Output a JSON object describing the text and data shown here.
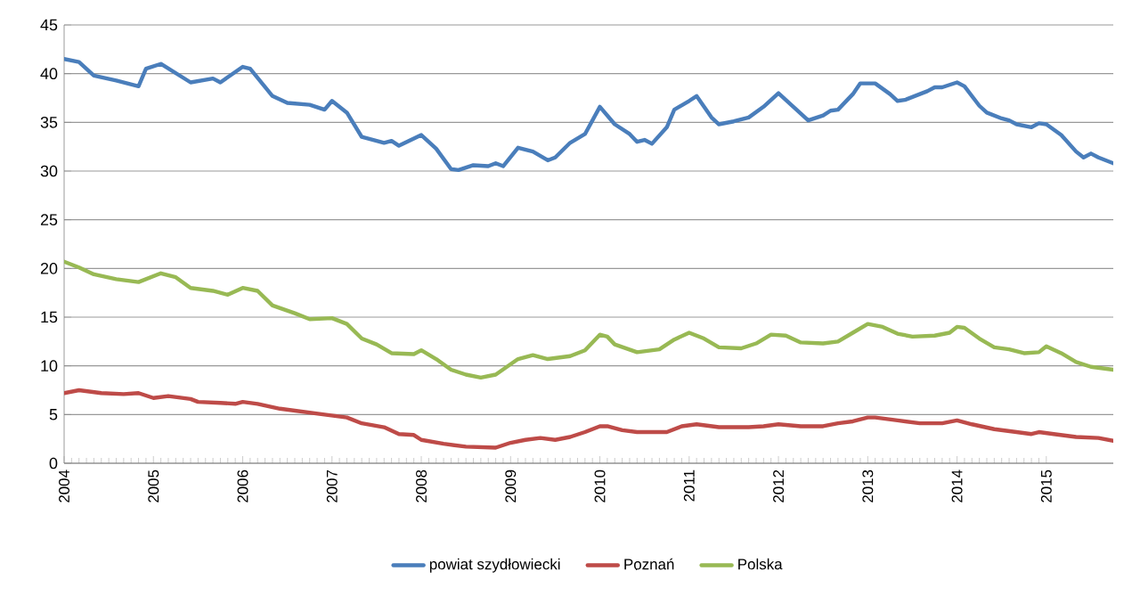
{
  "chart_data": {
    "type": "line",
    "xlim": [
      "2004-01",
      "2015-10"
    ],
    "xticks": [
      "2004",
      "2005",
      "2006",
      "2007",
      "2008",
      "2009",
      "2010",
      "2011",
      "2012",
      "2013",
      "2014",
      "2015"
    ],
    "ylim": [
      0,
      45
    ],
    "yticks": [
      0,
      5,
      10,
      15,
      20,
      25,
      30,
      35,
      40,
      45
    ],
    "grid": "y",
    "legend": "bottom",
    "marker": "none",
    "line_style": "solid",
    "series": [
      {
        "name": "powiat szydłowiecki",
        "color": "#4a7ebb",
        "x": [
          "2004-01",
          "2004-03",
          "2004-05",
          "2004-08",
          "2004-11",
          "2004-12",
          "2005-02",
          "2005-06",
          "2005-09",
          "2005-10",
          "2006-01",
          "2006-02",
          "2006-05",
          "2006-07",
          "2006-10",
          "2006-12",
          "2007-01",
          "2007-03",
          "2007-05",
          "2007-08",
          "2007-09",
          "2007-10",
          "2008-01",
          "2008-03",
          "2008-05",
          "2008-06",
          "2008-08",
          "2008-10",
          "2008-11",
          "2008-12",
          "2009-02",
          "2009-04",
          "2009-06",
          "2009-07",
          "2009-09",
          "2009-11",
          "2010-01",
          "2010-03",
          "2010-05",
          "2010-06",
          "2010-07",
          "2010-08",
          "2010-10",
          "2010-11",
          "2011-01",
          "2011-02",
          "2011-04",
          "2011-05",
          "2011-07",
          "2011-09",
          "2011-11",
          "2012-01",
          "2012-03",
          "2012-05",
          "2012-07",
          "2012-08",
          "2012-09",
          "2012-11",
          "2012-12",
          "2013-02",
          "2013-04",
          "2013-05",
          "2013-06",
          "2013-08",
          "2013-09",
          "2013-10",
          "2013-11",
          "2014-01",
          "2014-02",
          "2014-04",
          "2014-05",
          "2014-07",
          "2014-08",
          "2014-09",
          "2014-11",
          "2014-12",
          "2015-01",
          "2015-03",
          "2015-05",
          "2015-06",
          "2015-07",
          "2015-08",
          "2015-10"
        ],
        "values": [
          41.5,
          41.2,
          39.8,
          39.3,
          38.7,
          40.5,
          41.0,
          39.1,
          39.5,
          39.1,
          40.7,
          40.5,
          37.7,
          37.0,
          36.8,
          36.3,
          37.2,
          36.0,
          33.5,
          32.9,
          33.1,
          32.6,
          33.7,
          32.3,
          30.2,
          30.1,
          30.6,
          30.5,
          30.8,
          30.5,
          32.4,
          32.0,
          31.1,
          31.4,
          32.9,
          33.8,
          36.6,
          34.8,
          33.8,
          33.0,
          33.2,
          32.8,
          34.5,
          36.3,
          37.2,
          37.7,
          35.5,
          34.8,
          35.1,
          35.5,
          36.6,
          38.0,
          36.6,
          35.2,
          35.7,
          36.2,
          36.3,
          37.9,
          39.0,
          39.0,
          37.9,
          37.2,
          37.3,
          37.9,
          38.2,
          38.6,
          38.6,
          39.1,
          38.7,
          36.7,
          36.0,
          35.4,
          35.2,
          34.8,
          34.5,
          34.9,
          34.8,
          33.7,
          32.0,
          31.4,
          31.8,
          31.4,
          30.8
        ]
      },
      {
        "name": "Poznań",
        "color": "#be4b48",
        "x": [
          "2004-01",
          "2004-03",
          "2004-06",
          "2004-09",
          "2004-11",
          "2005-01",
          "2005-03",
          "2005-06",
          "2005-07",
          "2005-10",
          "2005-12",
          "2006-01",
          "2006-03",
          "2006-06",
          "2006-09",
          "2006-12",
          "2007-03",
          "2007-05",
          "2007-08",
          "2007-10",
          "2007-12",
          "2008-01",
          "2008-04",
          "2008-07",
          "2008-11",
          "2009-01",
          "2009-03",
          "2009-05",
          "2009-07",
          "2009-09",
          "2009-11",
          "2010-01",
          "2010-02",
          "2010-04",
          "2010-06",
          "2010-10",
          "2010-12",
          "2011-02",
          "2011-05",
          "2011-09",
          "2011-11",
          "2012-01",
          "2012-04",
          "2012-07",
          "2012-09",
          "2012-11",
          "2013-01",
          "2013-02",
          "2013-05",
          "2013-08",
          "2013-11",
          "2014-01",
          "2014-03",
          "2014-06",
          "2014-09",
          "2014-11",
          "2014-12",
          "2015-02",
          "2015-05",
          "2015-08",
          "2015-10"
        ],
        "values": [
          7.2,
          7.5,
          7.2,
          7.1,
          7.2,
          6.7,
          6.9,
          6.6,
          6.3,
          6.2,
          6.1,
          6.3,
          6.1,
          5.6,
          5.3,
          5.0,
          4.7,
          4.1,
          3.7,
          3.0,
          2.9,
          2.4,
          2.0,
          1.7,
          1.6,
          2.1,
          2.4,
          2.6,
          2.4,
          2.7,
          3.2,
          3.8,
          3.8,
          3.4,
          3.2,
          3.2,
          3.8,
          4.0,
          3.7,
          3.7,
          3.8,
          4.0,
          3.8,
          3.8,
          4.1,
          4.3,
          4.7,
          4.7,
          4.4,
          4.1,
          4.1,
          4.4,
          4.0,
          3.5,
          3.2,
          3.0,
          3.2,
          3.0,
          2.7,
          2.6,
          2.3
        ]
      },
      {
        "name": "Polska",
        "color": "#98b954",
        "x": [
          "2004-01",
          "2004-03",
          "2004-05",
          "2004-08",
          "2004-11",
          "2005-02",
          "2005-04",
          "2005-06",
          "2005-09",
          "2005-11",
          "2006-01",
          "2006-03",
          "2006-05",
          "2006-08",
          "2006-10",
          "2007-01",
          "2007-03",
          "2007-05",
          "2007-07",
          "2007-09",
          "2007-12",
          "2008-01",
          "2008-03",
          "2008-05",
          "2008-07",
          "2008-09",
          "2008-11",
          "2009-02",
          "2009-04",
          "2009-06",
          "2009-09",
          "2009-11",
          "2010-01",
          "2010-02",
          "2010-03",
          "2010-06",
          "2010-09",
          "2010-11",
          "2011-01",
          "2011-03",
          "2011-05",
          "2011-08",
          "2011-10",
          "2011-12",
          "2012-02",
          "2012-04",
          "2012-07",
          "2012-09",
          "2012-11",
          "2013-01",
          "2013-03",
          "2013-05",
          "2013-07",
          "2013-10",
          "2013-12",
          "2014-01",
          "2014-02",
          "2014-04",
          "2014-06",
          "2014-08",
          "2014-10",
          "2014-12",
          "2015-01",
          "2015-03",
          "2015-05",
          "2015-07",
          "2015-10"
        ],
        "values": [
          20.7,
          20.1,
          19.4,
          18.9,
          18.6,
          19.5,
          19.1,
          18.0,
          17.7,
          17.3,
          18.0,
          17.7,
          16.2,
          15.4,
          14.8,
          14.9,
          14.3,
          12.8,
          12.2,
          11.3,
          11.2,
          11.6,
          10.7,
          9.6,
          9.1,
          8.8,
          9.1,
          10.7,
          11.1,
          10.7,
          11.0,
          11.6,
          13.2,
          13.0,
          12.2,
          11.4,
          11.7,
          12.7,
          13.4,
          12.8,
          11.9,
          11.8,
          12.3,
          13.2,
          13.1,
          12.4,
          12.3,
          12.5,
          13.4,
          14.3,
          14.0,
          13.3,
          13.0,
          13.1,
          13.4,
          14.0,
          13.9,
          12.8,
          11.9,
          11.7,
          11.3,
          11.4,
          12.0,
          11.3,
          10.4,
          9.9,
          9.6
        ]
      }
    ]
  }
}
